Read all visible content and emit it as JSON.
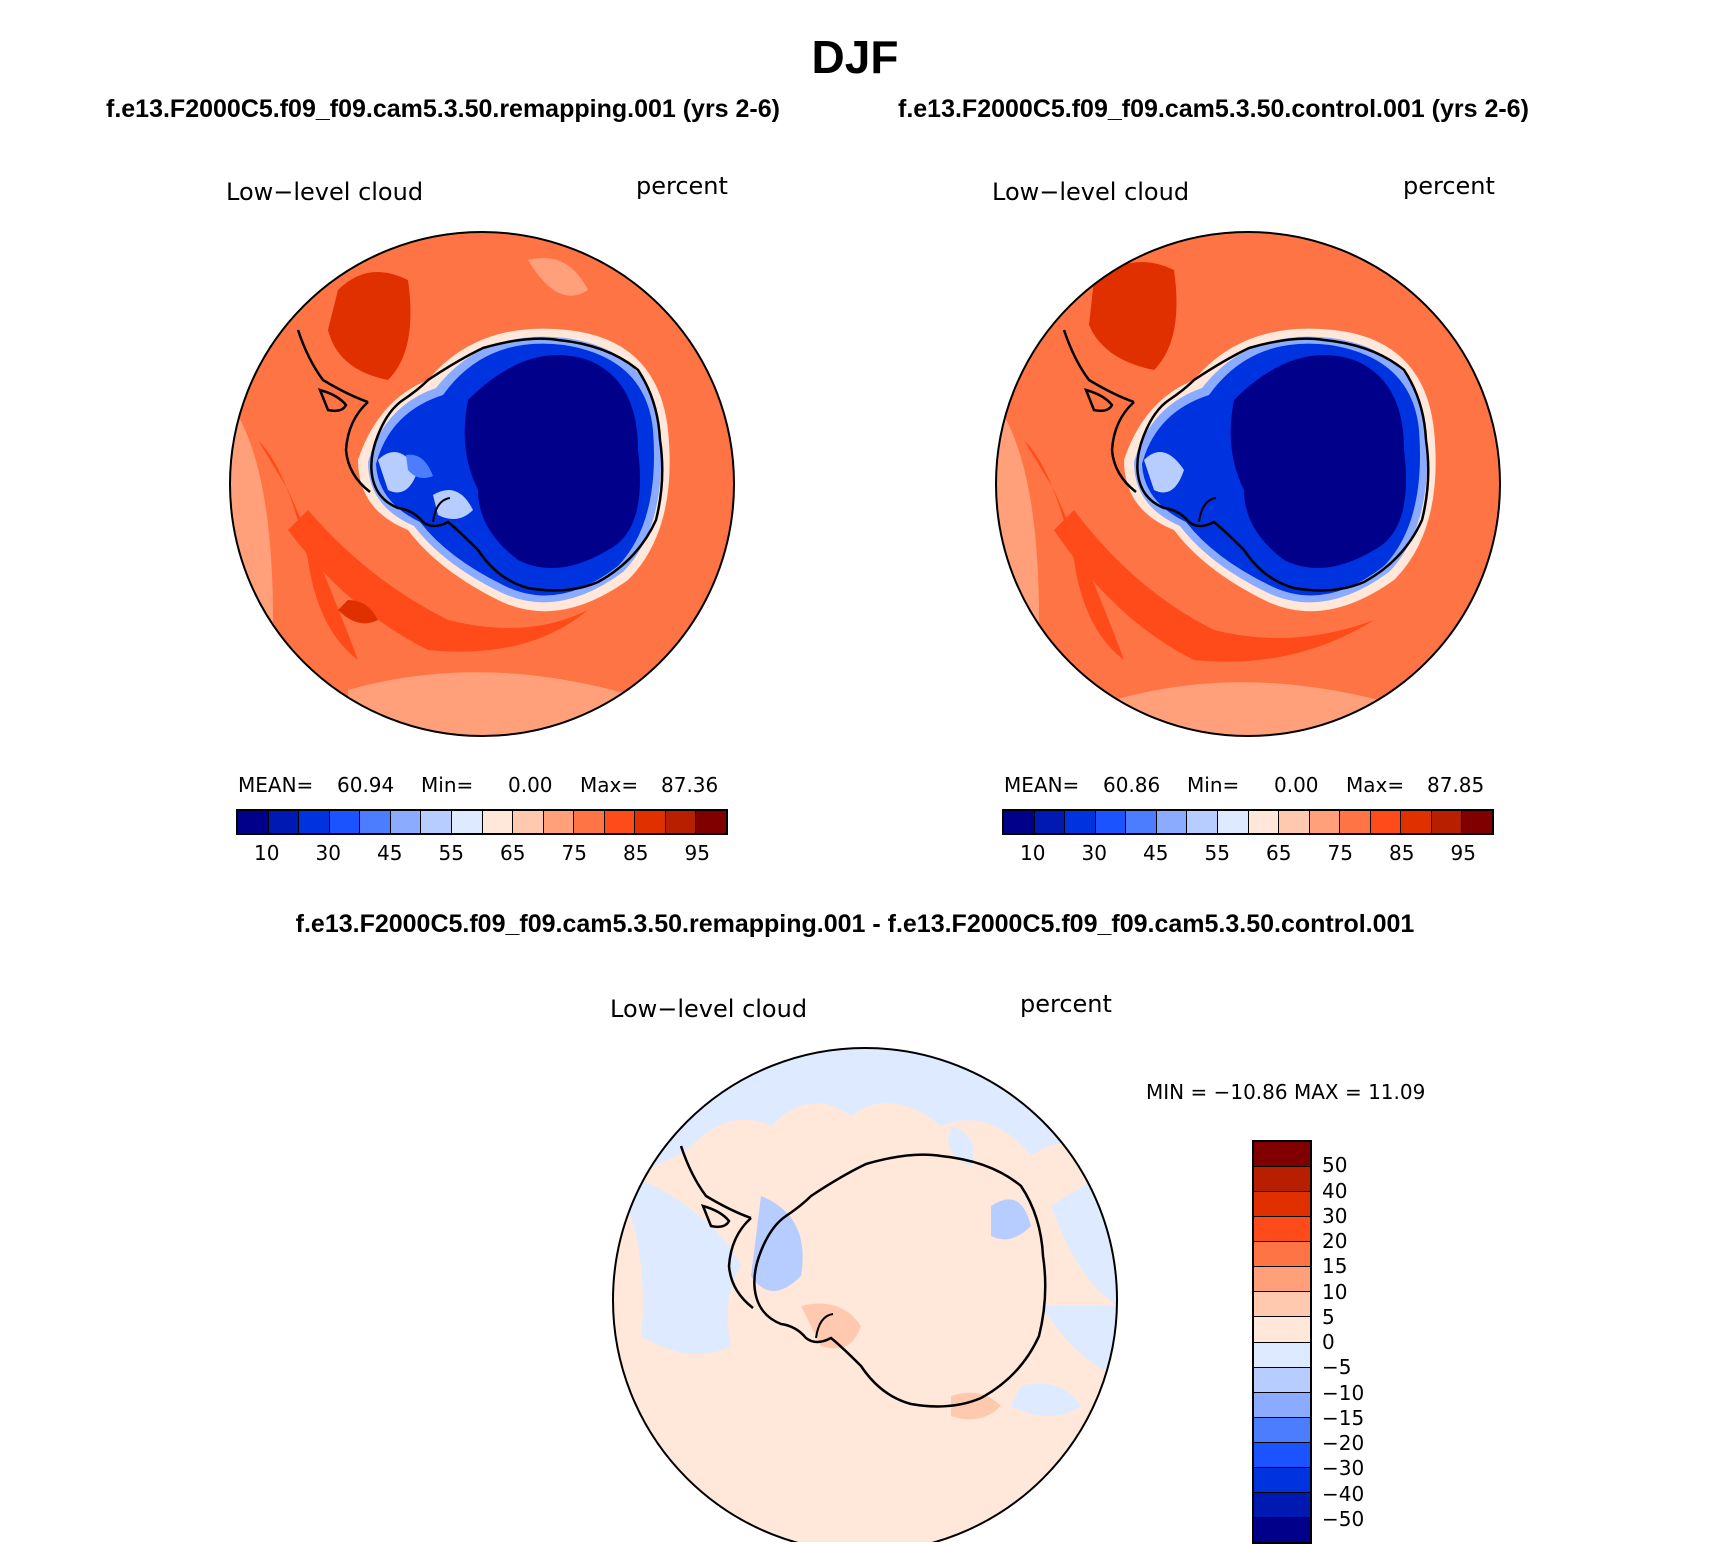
{
  "title": "DJF",
  "panels": [
    {
      "case": "f.e13.F2000C5.f09_f09.cam5.3.50.remapping.001 (yrs 2-6)",
      "variable": "Low−level cloud",
      "units": "percent",
      "mean_label": "MEAN=",
      "mean": "60.94",
      "min_label": "Min=",
      "min": "0.00",
      "max_label": "Max=",
      "max": "87.36"
    },
    {
      "case": "f.e13.F2000C5.f09_f09.cam5.3.50.control.001 (yrs 2-6)",
      "variable": "Low−level cloud",
      "units": "percent",
      "mean_label": "MEAN=",
      "mean": "60.86",
      "min_label": "Min=",
      "min": "0.00",
      "max_label": "Max=",
      "max": "87.85"
    }
  ],
  "abs_colorbar": {
    "colors": [
      "#00008b",
      "#0019b3",
      "#0033e0",
      "#1a53ff",
      "#4d7dff",
      "#8aabff",
      "#b8cdff",
      "#ddeaff",
      "#ffe8da",
      "#ffc9b0",
      "#ffa07a",
      "#ff7444",
      "#ff4a1a",
      "#e03000",
      "#b81e00",
      "#800000"
    ],
    "ticks": [
      "10",
      "30",
      "45",
      "55",
      "65",
      "75",
      "85",
      "95"
    ]
  },
  "diff": {
    "title": "f.e13.F2000C5.f09_f09.cam5.3.50.remapping.001 - f.e13.F2000C5.f09_f09.cam5.3.50.control.001",
    "variable": "Low−level cloud",
    "units": "percent",
    "minmax_label": "MIN = −10.86  MAX =   11.09",
    "min": -10.86,
    "max": 11.09
  },
  "diff_colorbar": {
    "colors_top_to_bottom": [
      "#800000",
      "#b81e00",
      "#e03000",
      "#ff4a1a",
      "#ff7444",
      "#ffa07a",
      "#ffc9b0",
      "#ffe8da",
      "#ddeaff",
      "#b8cdff",
      "#8aabff",
      "#4d7dff",
      "#1a53ff",
      "#0033e0",
      "#0019b3",
      "#00008b"
    ],
    "ticks": [
      "50",
      "40",
      "30",
      "20",
      "15",
      "10",
      "5",
      "0",
      "−5",
      "−10",
      "−15",
      "−20",
      "−30",
      "−40",
      "−50"
    ]
  }
}
